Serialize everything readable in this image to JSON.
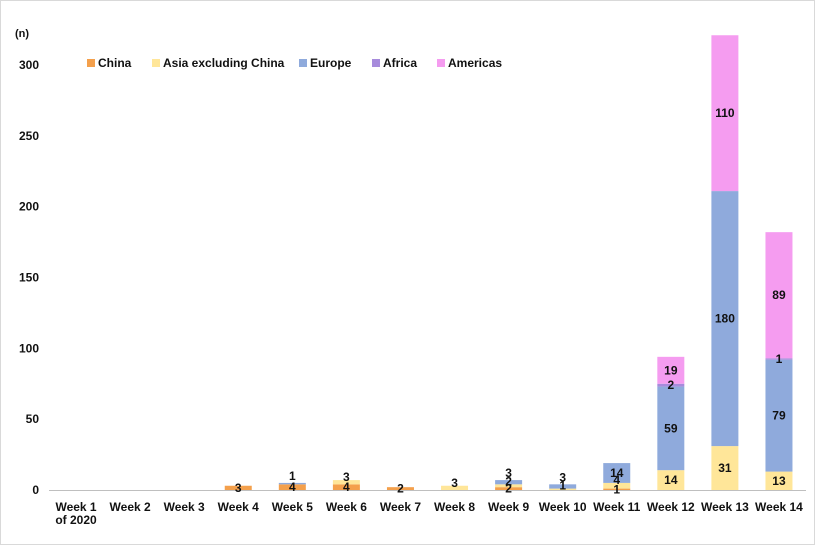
{
  "chart_data": {
    "type": "bar",
    "stacked": true,
    "title": "",
    "xlabel": "",
    "ylabel": "(n)",
    "ylim": [
      0,
      300
    ],
    "yticks": [
      0,
      50,
      100,
      150,
      200,
      250,
      300
    ],
    "grid": false,
    "legend_position": "top-left",
    "categories": [
      [
        "Week 1",
        "of 2020"
      ],
      [
        "Week 2"
      ],
      [
        "Week 3"
      ],
      [
        "Week 4"
      ],
      [
        "Week 5"
      ],
      [
        "Week 6"
      ],
      [
        "Week 7"
      ],
      [
        "Week 8"
      ],
      [
        "Week 9"
      ],
      [
        "Week 10"
      ],
      [
        "Week 11"
      ],
      [
        "Week 12"
      ],
      [
        "Week 13"
      ],
      [
        "Week 14"
      ]
    ],
    "series": [
      {
        "name": "China",
        "color": "#f4a04c",
        "values": [
          0,
          0,
          0,
          3,
          4,
          4,
          2,
          0,
          2,
          0,
          1,
          0,
          0,
          0
        ]
      },
      {
        "name": "Asia excluding China",
        "color": "#ffe699",
        "values": [
          0,
          0,
          0,
          0,
          0,
          3,
          0,
          3,
          2,
          1,
          4,
          14,
          31,
          13
        ]
      },
      {
        "name": "Europe",
        "color": "#8faadc",
        "values": [
          0,
          0,
          0,
          0,
          1,
          0,
          0,
          0,
          3,
          3,
          14,
          59,
          180,
          79
        ]
      },
      {
        "name": "Africa",
        "color": "#a78bdc",
        "values": [
          0,
          0,
          0,
          0,
          0,
          0,
          0,
          0,
          0,
          0,
          0,
          2,
          0,
          1
        ]
      },
      {
        "name": "Americas",
        "color": "#f59cf0",
        "values": [
          0,
          0,
          0,
          0,
          0,
          0,
          0,
          0,
          0,
          0,
          0,
          19,
          110,
          89
        ]
      }
    ]
  }
}
